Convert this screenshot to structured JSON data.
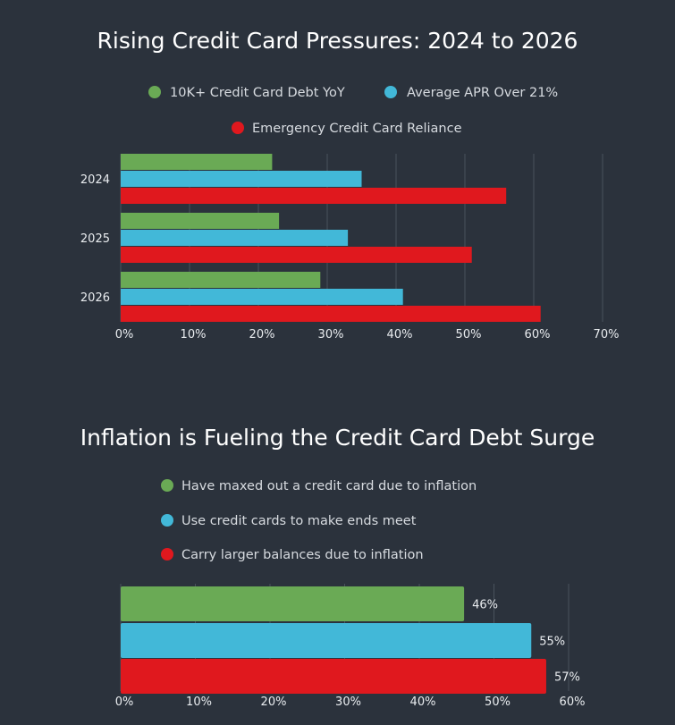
{
  "colors": {
    "background": "#2b323c",
    "green": "#6aaa55",
    "blue": "#42b8d8",
    "red": "#e0181e",
    "grid": "#4a525d"
  },
  "chart_data": [
    {
      "type": "bar",
      "orientation": "horizontal",
      "title": "Rising Credit Card Pressures: 2024 to 2026",
      "categories": [
        "2024",
        "2025",
        "2026"
      ],
      "series": [
        {
          "name": "10K+ Credit Card Debt YoY",
          "color": "#6aaa55",
          "values": [
            22,
            23,
            29
          ]
        },
        {
          "name": "Average APR Over 21%",
          "color": "#42b8d8",
          "values": [
            35,
            33,
            41
          ]
        },
        {
          "name": "Emergency Credit Card Reliance",
          "color": "#e0181e",
          "values": [
            56,
            51,
            61
          ]
        }
      ],
      "xlim": [
        0,
        70
      ],
      "xticks": [
        "0%",
        "10%",
        "20%",
        "30%",
        "40%",
        "50%",
        "60%",
        "70%"
      ],
      "grid": true,
      "legend_position": "top"
    },
    {
      "type": "bar",
      "orientation": "horizontal",
      "title": "Inflation is Fueling the Credit Card Debt Surge",
      "categories": [
        "Have maxed out a credit card due to inflation",
        "Use credit cards to make ends meet",
        "Carry larger balances due to inflation"
      ],
      "values": [
        46,
        55,
        57
      ],
      "data_labels": [
        "46%",
        "55%",
        "57%"
      ],
      "colors": [
        "#6aaa55",
        "#42b8d8",
        "#e0181e"
      ],
      "xlim": [
        0,
        60
      ],
      "xticks": [
        "0%",
        "10%",
        "20%",
        "30%",
        "40%",
        "50%",
        "60%"
      ],
      "grid": true,
      "legend_position": "top"
    }
  ]
}
